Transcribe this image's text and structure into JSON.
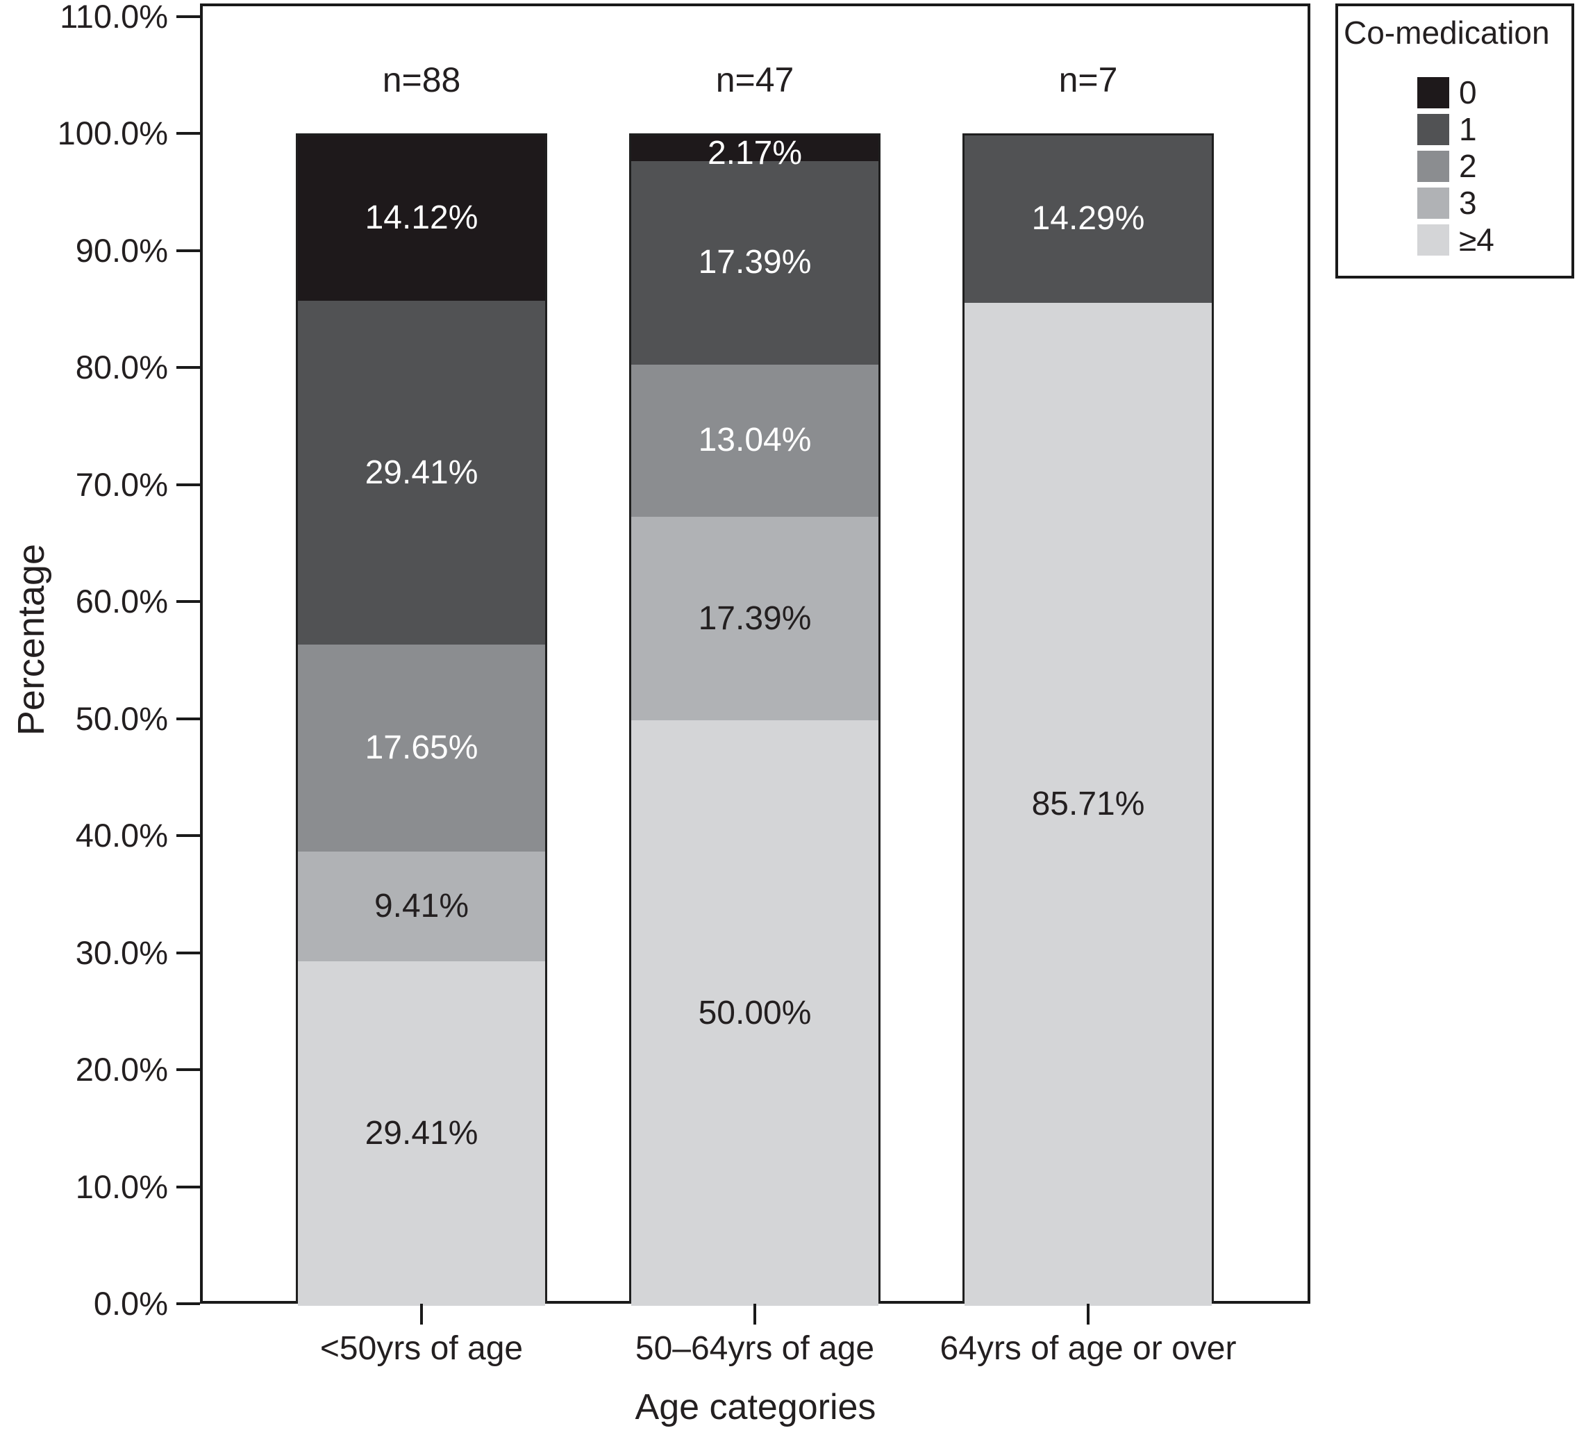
{
  "chart_data": {
    "type": "bar",
    "subtype": "stacked-percentage-vertical",
    "title": "",
    "xlabel": "Age categories",
    "ylabel": "Percentage",
    "ylim": [
      0,
      110
    ],
    "y_tick_step": 10,
    "y_ticks": [
      "0.0%",
      "10.0%",
      "20.0%",
      "30.0%",
      "40.0%",
      "50.0%",
      "60.0%",
      "70.0%",
      "80.0%",
      "90.0%",
      "100.0%",
      "110.0%"
    ],
    "grid": "off",
    "legend": {
      "title": "Co-medication",
      "position": "top-right",
      "entries": [
        {
          "label": "0",
          "color": "#1e191b"
        },
        {
          "label": "1",
          "color": "#515254"
        },
        {
          "label": "2",
          "color": "#8b8d90"
        },
        {
          "label": "3",
          "color": "#b0b2b5"
        },
        {
          "label": "≥4",
          "color": "#d4d5d7"
        }
      ]
    },
    "segments_order_note": "segments listed top to bottom as drawn",
    "categories": [
      {
        "label": "<50yrs of age",
        "count_label": "n=88",
        "segments": [
          {
            "legend": "0",
            "value": 14.12,
            "label": "14.12%"
          },
          {
            "legend": "1",
            "value": 29.41,
            "label": "29.41%"
          },
          {
            "legend": "2",
            "value": 17.65,
            "label": "17.65%"
          },
          {
            "legend": "3",
            "value": 9.41,
            "label": "9.41%"
          },
          {
            "legend": "≥4",
            "value": 29.41,
            "label": "29.41%"
          }
        ]
      },
      {
        "label": "50–64yrs of age",
        "count_label": "n=47",
        "segments": [
          {
            "legend": "0",
            "value": 2.17,
            "label": "2.17%"
          },
          {
            "legend": "1",
            "value": 17.39,
            "label": "17.39%"
          },
          {
            "legend": "2",
            "value": 13.04,
            "label": "13.04%"
          },
          {
            "legend": "3",
            "value": 17.39,
            "label": "17.39%"
          },
          {
            "legend": "≥4",
            "value": 50.0,
            "label": "50.00%"
          }
        ]
      },
      {
        "label": "64yrs of age or over",
        "count_label": "n=7",
        "segments": [
          {
            "legend": "1",
            "value": 14.29,
            "label": "14.29%"
          },
          {
            "legend": "≥4",
            "value": 85.71,
            "label": "85.71%"
          }
        ]
      }
    ],
    "label_text_colors": {
      "dark_segments": "#ffffff",
      "light_segments": "#231f20"
    }
  }
}
